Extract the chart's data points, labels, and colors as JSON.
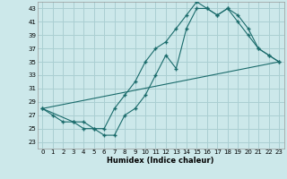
{
  "xlabel": "Humidex (Indice chaleur)",
  "bg_color": "#cce8ea",
  "grid_color": "#aacfd2",
  "line_color": "#1a6b6b",
  "ylim": [
    22,
    44
  ],
  "xlim": [
    -0.5,
    23.5
  ],
  "yticks": [
    23,
    25,
    27,
    29,
    31,
    33,
    35,
    37,
    39,
    41,
    43
  ],
  "xticks": [
    0,
    1,
    2,
    3,
    4,
    5,
    6,
    7,
    8,
    9,
    10,
    11,
    12,
    13,
    14,
    15,
    16,
    17,
    18,
    19,
    20,
    21,
    22,
    23
  ],
  "line1_x": [
    0,
    1,
    2,
    3,
    4,
    5,
    6,
    7,
    8,
    9,
    10,
    11,
    12,
    13,
    14,
    15,
    16,
    17,
    18,
    19,
    20,
    21,
    22,
    23
  ],
  "line1_y": [
    28,
    27,
    26,
    26,
    25,
    25,
    24,
    24,
    27,
    28,
    30,
    33,
    36,
    34,
    40,
    43,
    43,
    42,
    43,
    41,
    39,
    37,
    36,
    35
  ],
  "line2_x": [
    0,
    3,
    4,
    5,
    6,
    7,
    8,
    9,
    10,
    11,
    12,
    13,
    14,
    15,
    16,
    17,
    18,
    19,
    20,
    21,
    22,
    23
  ],
  "line2_y": [
    28,
    26,
    26,
    25,
    25,
    28,
    30,
    32,
    35,
    37,
    38,
    40,
    42,
    44,
    43,
    42,
    43,
    42,
    40,
    37,
    36,
    35
  ],
  "line3_x": [
    0,
    23
  ],
  "line3_y": [
    28,
    35
  ]
}
